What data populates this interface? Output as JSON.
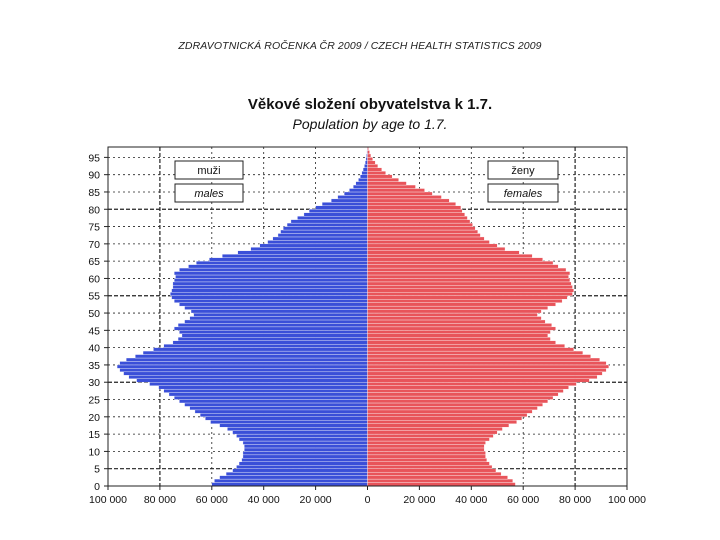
{
  "header": "ZDRAVOTNICKÁ ROČENKA ČR 2009  /  CZECH HEALTH STATISTICS 2009",
  "chart_data": {
    "type": "bar",
    "orientation": "horizontal",
    "title": "Věkové složení obyvatelstva k 1.7.",
    "subtitle": "Population by age to 1.7.",
    "labels": {
      "male_cz": "muži",
      "male_en": "males",
      "female_cz": "ženy",
      "female_en": "females"
    },
    "x_ticks": [
      "100 000",
      "80 000",
      "60 000",
      "40 000",
      "20 000",
      "0",
      "20 000",
      "40 000",
      "60 000",
      "80 000",
      "100 000"
    ],
    "y_ticks": [
      "0",
      "5",
      "10",
      "15",
      "20",
      "25",
      "30",
      "35",
      "40",
      "45",
      "50",
      "55",
      "60",
      "65",
      "70",
      "75",
      "80",
      "85",
      "90",
      "95"
    ],
    "xlim": [
      -100000,
      100000
    ],
    "ylim": [
      0,
      98
    ],
    "grid": true,
    "series": [
      {
        "name": "muži",
        "color": "#3a4fd8",
        "values": [
          60000,
          59000,
          57000,
          54500,
          52000,
          50500,
          49500,
          48500,
          48000,
          48000,
          47500,
          47500,
          48000,
          49500,
          50500,
          52000,
          54000,
          57000,
          60500,
          62500,
          64500,
          66500,
          68500,
          70500,
          72500,
          74500,
          76500,
          78500,
          80500,
          84000,
          89000,
          92000,
          94000,
          95500,
          96500,
          95500,
          93000,
          89500,
          86500,
          82500,
          78500,
          75000,
          73000,
          71500,
          72500,
          74500,
          73000,
          70500,
          68500,
          67000,
          68000,
          70500,
          72500,
          74500,
          75500,
          76000,
          75500,
          75000,
          75000,
          74500,
          74000,
          74500,
          72500,
          69000,
          66000,
          61000,
          56000,
          50000,
          45000,
          41500,
          38500,
          36500,
          34500,
          33500,
          32500,
          31000,
          29500,
          27000,
          24500,
          22500,
          20000,
          17500,
          14000,
          11500,
          9000,
          7000,
          5500,
          4500,
          3500,
          2800,
          2200,
          1700,
          1200,
          900,
          600,
          400,
          250,
          150
        ]
      },
      {
        "name": "ženy",
        "color": "#e8545a",
        "values": [
          57000,
          56000,
          54000,
          51500,
          49500,
          48000,
          47000,
          46000,
          45500,
          45500,
          45000,
          45000,
          45500,
          47000,
          48500,
          50000,
          52000,
          54500,
          57500,
          59500,
          61500,
          63500,
          65500,
          67500,
          69500,
          71500,
          73500,
          75500,
          77500,
          80500,
          85500,
          88500,
          90500,
          92000,
          93000,
          92000,
          89500,
          86000,
          83000,
          79500,
          76000,
          72500,
          70500,
          69500,
          70500,
          72500,
          71000,
          68500,
          67000,
          65500,
          67000,
          69500,
          72500,
          75000,
          77000,
          79000,
          79500,
          79000,
          78500,
          78000,
          77500,
          78000,
          76500,
          73500,
          71500,
          67500,
          63500,
          58500,
          53000,
          50000,
          47000,
          45000,
          43500,
          42500,
          41500,
          40500,
          39500,
          38500,
          37500,
          36500,
          36000,
          34000,
          31500,
          28500,
          25000,
          22000,
          18500,
          15000,
          12000,
          9500,
          7000,
          5500,
          4000,
          3000,
          2000,
          1300,
          800,
          400
        ]
      }
    ]
  }
}
